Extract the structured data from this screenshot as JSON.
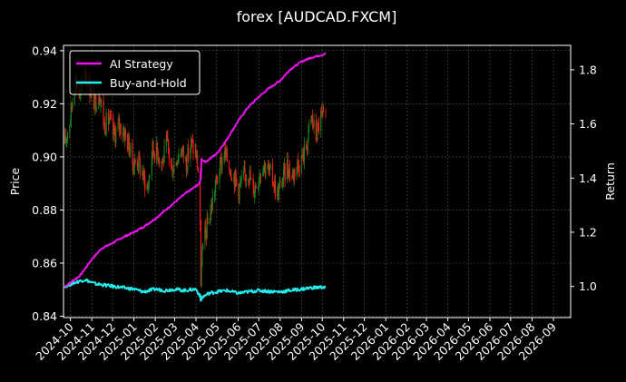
{
  "chart_data": {
    "type": "line",
    "title": "forex [AUDCAD.FXCM]",
    "ylabel": "Price",
    "y2label": "Return",
    "ylim": [
      0.8395,
      0.942
    ],
    "y2lim": [
      0.885,
      1.89
    ],
    "yticks": [
      0.84,
      0.86,
      0.88,
      0.9,
      0.92,
      0.94
    ],
    "ytick_labels": [
      "0.84",
      "0.86",
      "0.88",
      "0.90",
      "0.92",
      "0.94"
    ],
    "y2ticks": [
      1.0,
      1.2,
      1.4,
      1.6,
      1.8
    ],
    "y2tick_labels": [
      "1.0",
      "1.2",
      "1.4",
      "1.6",
      "1.8"
    ],
    "x_range": [
      "2024-09-21",
      "2026-09-26"
    ],
    "xticks": [
      "2024-10-01",
      "2024-11-01",
      "2024-12-01",
      "2025-01-01",
      "2025-02-01",
      "2025-03-01",
      "2025-04-01",
      "2025-05-01",
      "2025-06-01",
      "2025-07-01",
      "2025-08-01",
      "2025-09-01",
      "2025-10-01",
      "2025-11-01",
      "2025-12-01",
      "2026-01-01",
      "2026-02-01",
      "2026-03-01",
      "2026-04-01",
      "2026-05-01",
      "2026-06-01",
      "2026-07-01",
      "2026-08-01",
      "2026-09-01"
    ],
    "xtick_labels": [
      "2024-10",
      "2024-11",
      "2024-12",
      "2025-01",
      "2025-02",
      "2025-03",
      "2025-04",
      "2025-05",
      "2025-06",
      "2025-07",
      "2025-08",
      "2025-09",
      "2025-10",
      "2025-11",
      "2025-12",
      "2026-01",
      "2026-02",
      "2026-03",
      "2026-04",
      "2026-05",
      "2026-06",
      "2026-07",
      "2026-08",
      "2026-09"
    ],
    "grid": true,
    "legend_position": "top-left",
    "colors": {
      "up": "#1a7f1a",
      "down": "#ff1a1a",
      "ai": "#ee11ee",
      "bh": "#22eeee",
      "grid": "#555555",
      "axes": "#ffffff"
    },
    "price_series": {
      "name": "AUDCAD candles",
      "points": [
        [
          "2024-09-23",
          0.905
        ],
        [
          "2024-10-01",
          0.915
        ],
        [
          "2024-10-08",
          0.93
        ],
        [
          "2024-10-15",
          0.922
        ],
        [
          "2024-10-22",
          0.933
        ],
        [
          "2024-10-29",
          0.926
        ],
        [
          "2024-11-05",
          0.92
        ],
        [
          "2024-11-12",
          0.925
        ],
        [
          "2024-11-19",
          0.912
        ],
        [
          "2024-11-26",
          0.914
        ],
        [
          "2024-12-03",
          0.908
        ],
        [
          "2024-12-10",
          0.912
        ],
        [
          "2024-12-17",
          0.91
        ],
        [
          "2024-12-24",
          0.905
        ],
        [
          "2024-12-31",
          0.897
        ],
        [
          "2025-01-07",
          0.899
        ],
        [
          "2025-01-14",
          0.893
        ],
        [
          "2025-01-21",
          0.888
        ],
        [
          "2025-01-28",
          0.903
        ],
        [
          "2025-02-04",
          0.902
        ],
        [
          "2025-02-11",
          0.898
        ],
        [
          "2025-02-18",
          0.905
        ],
        [
          "2025-02-25",
          0.895
        ],
        [
          "2025-03-04",
          0.9
        ],
        [
          "2025-03-11",
          0.903
        ],
        [
          "2025-03-18",
          0.898
        ],
        [
          "2025-03-25",
          0.905
        ],
        [
          "2025-04-01",
          0.901
        ],
        [
          "2025-04-04",
          0.895
        ],
        [
          "2025-04-07",
          0.875
        ],
        [
          "2025-04-08",
          0.848
        ],
        [
          "2025-04-09",
          0.862
        ],
        [
          "2025-04-14",
          0.87
        ],
        [
          "2025-04-21",
          0.878
        ],
        [
          "2025-04-28",
          0.888
        ],
        [
          "2025-05-05",
          0.895
        ],
        [
          "2025-05-12",
          0.902
        ],
        [
          "2025-05-19",
          0.897
        ],
        [
          "2025-05-26",
          0.893
        ],
        [
          "2025-06-02",
          0.888
        ],
        [
          "2025-06-09",
          0.892
        ],
        [
          "2025-06-16",
          0.895
        ],
        [
          "2025-06-23",
          0.887
        ],
        [
          "2025-06-30",
          0.892
        ],
        [
          "2025-07-07",
          0.898
        ],
        [
          "2025-07-14",
          0.895
        ],
        [
          "2025-07-21",
          0.892
        ],
        [
          "2025-07-28",
          0.886
        ],
        [
          "2025-08-04",
          0.891
        ],
        [
          "2025-08-11",
          0.897
        ],
        [
          "2025-08-18",
          0.893
        ],
        [
          "2025-08-25",
          0.897
        ],
        [
          "2025-09-01",
          0.899
        ],
        [
          "2025-09-08",
          0.904
        ],
        [
          "2025-09-15",
          0.915
        ],
        [
          "2025-09-22",
          0.908
        ],
        [
          "2025-09-29",
          0.915
        ],
        [
          "2025-10-06",
          0.913
        ]
      ]
    },
    "series": [
      {
        "name": "AI Strategy",
        "axis": "right",
        "points": [
          [
            "2024-09-23",
            1.0
          ],
          [
            "2024-10-15",
            1.04
          ],
          [
            "2024-11-01",
            1.1
          ],
          [
            "2024-11-15",
            1.14
          ],
          [
            "2024-12-01",
            1.16
          ],
          [
            "2024-12-15",
            1.18
          ],
          [
            "2025-01-01",
            1.2
          ],
          [
            "2025-01-15",
            1.22
          ],
          [
            "2025-02-01",
            1.25
          ],
          [
            "2025-02-15",
            1.28
          ],
          [
            "2025-03-01",
            1.31
          ],
          [
            "2025-03-15",
            1.34
          ],
          [
            "2025-04-01",
            1.37
          ],
          [
            "2025-04-06",
            1.38
          ],
          [
            "2025-04-08",
            1.4
          ],
          [
            "2025-04-09",
            1.47
          ],
          [
            "2025-04-15",
            1.46
          ],
          [
            "2025-05-01",
            1.49
          ],
          [
            "2025-05-15",
            1.54
          ],
          [
            "2025-06-01",
            1.61
          ],
          [
            "2025-06-15",
            1.66
          ],
          [
            "2025-07-01",
            1.7
          ],
          [
            "2025-07-15",
            1.73
          ],
          [
            "2025-08-01",
            1.76
          ],
          [
            "2025-08-15",
            1.8
          ],
          [
            "2025-09-01",
            1.83
          ],
          [
            "2025-09-15",
            1.845
          ],
          [
            "2025-10-01",
            1.855
          ],
          [
            "2025-10-06",
            1.86
          ]
        ]
      },
      {
        "name": "Buy-and-Hold",
        "axis": "right",
        "points": [
          [
            "2024-09-23",
            1.0
          ],
          [
            "2024-10-08",
            1.015
          ],
          [
            "2024-10-22",
            1.025
          ],
          [
            "2024-11-05",
            1.01
          ],
          [
            "2024-11-19",
            1.005
          ],
          [
            "2024-12-03",
            1.0
          ],
          [
            "2024-12-17",
            0.995
          ],
          [
            "2025-01-01",
            0.99
          ],
          [
            "2025-01-15",
            0.98
          ],
          [
            "2025-02-01",
            0.99
          ],
          [
            "2025-02-15",
            0.985
          ],
          [
            "2025-03-01",
            0.99
          ],
          [
            "2025-03-15",
            0.985
          ],
          [
            "2025-04-01",
            0.99
          ],
          [
            "2025-04-07",
            0.965
          ],
          [
            "2025-04-08",
            0.945
          ],
          [
            "2025-04-10",
            0.96
          ],
          [
            "2025-04-20",
            0.975
          ],
          [
            "2025-05-01",
            0.98
          ],
          [
            "2025-05-15",
            0.985
          ],
          [
            "2025-06-01",
            0.975
          ],
          [
            "2025-06-15",
            0.98
          ],
          [
            "2025-07-01",
            0.985
          ],
          [
            "2025-07-15",
            0.982
          ],
          [
            "2025-08-01",
            0.98
          ],
          [
            "2025-08-15",
            0.985
          ],
          [
            "2025-09-01",
            0.99
          ],
          [
            "2025-09-15",
            0.995
          ],
          [
            "2025-10-06",
            0.998
          ]
        ]
      }
    ]
  }
}
